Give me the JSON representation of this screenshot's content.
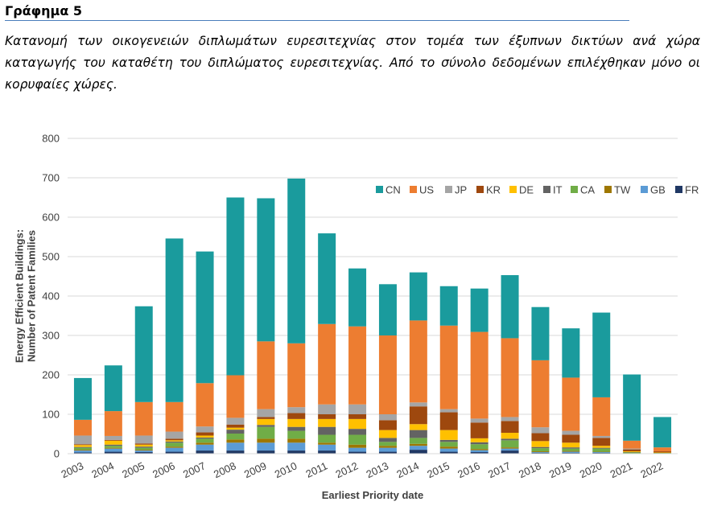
{
  "header": {
    "title": "Γράφημα 5",
    "caption": "Κατανομή των οικογενειών διπλωμάτων ευρεσιτεχνίας στον τομέα των έξυπνων δικτύων ανά χώρα καταγωγής του καταθέτη του διπλώματος ευρεσιτεχνίας. Από το σύνολο δεδομένων επιλέχθηκαν μόνο οι κορυφαίες χώρες."
  },
  "chart_data": {
    "type": "bar",
    "stacked": true,
    "xlabel": "Earliest Priority date",
    "ylabel": "Energy Efficient Buildings:\nNumber of Patent Families",
    "ylabel_lines": [
      "Energy Efficient Buildings:",
      "Number of Patent Families"
    ],
    "ylim": [
      0,
      800
    ],
    "yticks": [
      0,
      100,
      200,
      300,
      400,
      500,
      600,
      700,
      800
    ],
    "grid": true,
    "legend_position": "top-right",
    "categories": [
      "2003",
      "2004",
      "2005",
      "2006",
      "2007",
      "2008",
      "2009",
      "2010",
      "2011",
      "2012",
      "2013",
      "2014",
      "2015",
      "2016",
      "2017",
      "2018",
      "2019",
      "2020",
      "2021",
      "2022"
    ],
    "series": [
      {
        "name": "FR",
        "color": "#203864",
        "values": [
          3,
          5,
          4,
          5,
          8,
          8,
          8,
          8,
          8,
          5,
          5,
          10,
          5,
          4,
          8,
          2,
          2,
          2,
          0,
          0
        ]
      },
      {
        "name": "GB",
        "color": "#5b9bd5",
        "values": [
          5,
          8,
          4,
          10,
          15,
          20,
          20,
          20,
          15,
          10,
          10,
          10,
          8,
          5,
          5,
          2,
          3,
          2,
          0,
          0
        ]
      },
      {
        "name": "TW",
        "color": "#9e7700",
        "values": [
          2,
          2,
          2,
          3,
          5,
          8,
          10,
          10,
          5,
          8,
          5,
          5,
          5,
          3,
          3,
          2,
          2,
          1,
          0,
          0
        ]
      },
      {
        "name": "CA",
        "color": "#70ad47",
        "values": [
          5,
          5,
          5,
          10,
          10,
          15,
          30,
          20,
          20,
          25,
          10,
          15,
          12,
          12,
          18,
          8,
          6,
          8,
          3,
          2
        ]
      },
      {
        "name": "IT",
        "color": "#636363",
        "values": [
          2,
          3,
          3,
          3,
          3,
          10,
          5,
          10,
          20,
          15,
          10,
          20,
          5,
          5,
          4,
          3,
          3,
          2,
          1,
          0
        ]
      },
      {
        "name": "DE",
        "color": "#ffc000",
        "values": [
          5,
          10,
          5,
          3,
          5,
          5,
          15,
          20,
          20,
          25,
          20,
          15,
          25,
          10,
          15,
          15,
          12,
          5,
          2,
          1
        ]
      },
      {
        "name": "KR",
        "color": "#9e480e",
        "values": [
          2,
          2,
          3,
          4,
          8,
          8,
          5,
          15,
          12,
          12,
          25,
          45,
          45,
          40,
          30,
          20,
          20,
          20,
          5,
          3
        ]
      },
      {
        "name": "JP",
        "color": "#a5a5a5",
        "values": [
          22,
          10,
          20,
          18,
          15,
          17,
          20,
          15,
          25,
          25,
          15,
          10,
          8,
          10,
          10,
          15,
          10,
          5,
          2,
          0
        ]
      },
      {
        "name": "US",
        "color": "#ed7d31",
        "values": [
          40,
          63,
          85,
          75,
          110,
          108,
          172,
          162,
          204,
          198,
          200,
          208,
          212,
          220,
          200,
          170,
          135,
          98,
          20,
          10
        ]
      },
      {
        "name": "CN",
        "color": "#1a9b9d",
        "values": [
          106,
          116,
          243,
          415,
          334,
          451,
          363,
          418,
          230,
          147,
          130,
          122,
          100,
          110,
          160,
          135,
          125,
          215,
          168,
          77
        ]
      }
    ]
  }
}
